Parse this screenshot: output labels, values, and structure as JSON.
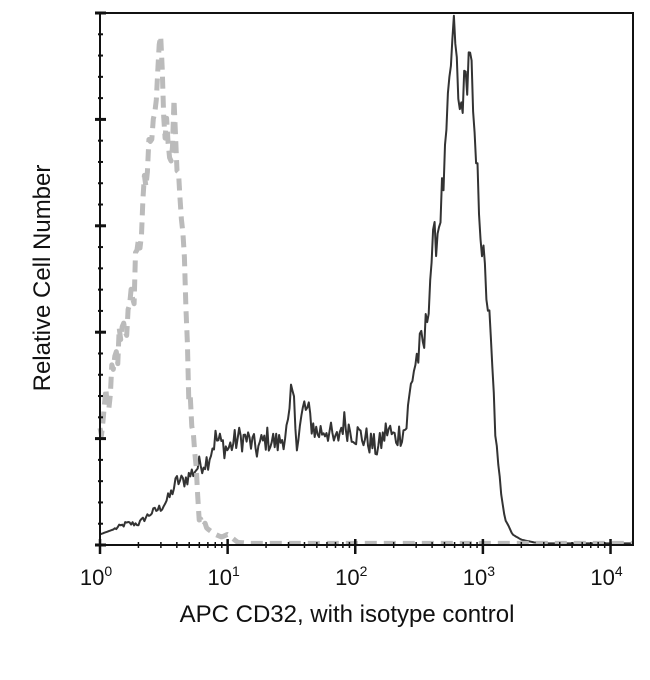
{
  "chart_data": {
    "type": "line",
    "title": "",
    "xlabel": "APC CD32, with isotype control",
    "ylabel": "Relative Cell Number",
    "x_scale": "log",
    "xlim": [
      1,
      15000
    ],
    "ylim": [
      0,
      100
    ],
    "grid": false,
    "x_ticks": [
      {
        "value": 1,
        "base": "10",
        "exp": "0"
      },
      {
        "value": 10,
        "base": "10",
        "exp": "1"
      },
      {
        "value": 100,
        "base": "10",
        "exp": "2"
      },
      {
        "value": 1000,
        "base": "10",
        "exp": "3"
      },
      {
        "value": 10000,
        "base": "10",
        "exp": "4"
      }
    ],
    "colors": {
      "stained": "#333333",
      "isotype": "#bbbbbb",
      "axis": "#111111"
    },
    "series": [
      {
        "style": "solid",
        "color": "#333333",
        "x": [
          1,
          1.3,
          1.6,
          2,
          2.5,
          3,
          3.5,
          4,
          4.5,
          5,
          6,
          7,
          8,
          10,
          12,
          14,
          17,
          20,
          25,
          30,
          32,
          35,
          40,
          50,
          60,
          70,
          80,
          100,
          120,
          150,
          180,
          200,
          250,
          280,
          300,
          350,
          400,
          450,
          500,
          560,
          600,
          650,
          700,
          750,
          800,
          850,
          900,
          1000,
          1100,
          1200,
          1300,
          1500,
          1700,
          2000,
          2500,
          3000,
          5000,
          8000,
          15000
        ],
        "y": [
          2,
          3,
          4,
          4,
          6,
          7,
          9,
          12,
          12,
          13,
          15,
          16,
          20,
          18,
          20,
          20,
          18,
          20,
          19,
          22,
          29,
          20,
          26,
          21,
          22,
          19,
          23,
          21,
          20,
          18,
          22,
          20,
          22,
          32,
          35,
          38,
          55,
          60,
          70,
          90,
          99,
          80,
          85,
          88,
          95,
          75,
          70,
          54,
          45,
          30,
          15,
          5,
          2,
          1,
          0.5,
          0.3,
          0.3,
          0.3,
          0.3
        ]
      },
      {
        "style": "dashed",
        "color": "#bbbbbb",
        "x": [
          1,
          1.2,
          1.4,
          1.6,
          1.8,
          2,
          2.2,
          2.4,
          2.6,
          2.8,
          3,
          3.2,
          3.5,
          3.8,
          4,
          4.5,
          5,
          5.5,
          6,
          7,
          8,
          9,
          10,
          12,
          15,
          20,
          30,
          100,
          1000,
          15000
        ],
        "y": [
          22,
          30,
          38,
          42,
          47,
          55,
          65,
          72,
          78,
          85,
          98,
          80,
          74,
          80,
          70,
          55,
          28,
          18,
          5,
          3,
          2,
          1.5,
          2,
          0.5,
          0.3,
          0.3,
          0.3,
          0.3,
          0.3,
          0.3
        ]
      }
    ]
  }
}
